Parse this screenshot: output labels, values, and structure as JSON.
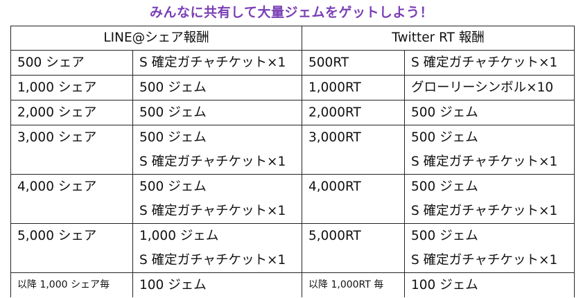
{
  "headline": "みんなに共有して大量ジェムをゲットしよう！",
  "colors": {
    "headline": "#7a3fb5",
    "border": "#222222",
    "text": "#111111"
  },
  "table": {
    "headers": {
      "line": "LINE@シェア報酬",
      "twitter": "Twitter RT 報酬"
    },
    "rows": [
      {
        "line_threshold": "500 シェア",
        "line_rewards": [
          "S 確定ガチャチケット×1"
        ],
        "tw_threshold": "500RT",
        "tw_rewards": [
          "S 確定ガチャチケット×1"
        ]
      },
      {
        "line_threshold": "1,000 シェア",
        "line_rewards": [
          "500 ジェム"
        ],
        "tw_threshold": "1,000RT",
        "tw_rewards": [
          "グローリーシンボル×10"
        ]
      },
      {
        "line_threshold": "2,000 シェア",
        "line_rewards": [
          "500 ジェム"
        ],
        "tw_threshold": "2,000RT",
        "tw_rewards": [
          "500 ジェム"
        ]
      },
      {
        "line_threshold": "3,000 シェア",
        "line_rewards": [
          "500 ジェム",
          "S 確定ガチャチケット×1"
        ],
        "tw_threshold": "3,000RT",
        "tw_rewards": [
          "500 ジェム",
          "S 確定ガチャチケット×1"
        ]
      },
      {
        "line_threshold": "4,000 シェア",
        "line_rewards": [
          "500 ジェム",
          "S 確定ガチャチケット×1"
        ],
        "tw_threshold": "4,000RT",
        "tw_rewards": [
          "500 ジェム",
          "S 確定ガチャチケット×1"
        ]
      },
      {
        "line_threshold": "5,000 シェア",
        "line_rewards": [
          "1,000 ジェム",
          "S 確定ガチャチケット×1"
        ],
        "tw_threshold": "5,000RT",
        "tw_rewards": [
          "500 ジェム",
          "S 確定ガチャチケット×1"
        ]
      },
      {
        "line_threshold": "以降 1,000 シェア毎",
        "line_rewards": [
          "100 ジェム"
        ],
        "tw_threshold": "以降 1,000RT 毎",
        "tw_rewards": [
          "100 ジェム"
        ]
      }
    ]
  }
}
